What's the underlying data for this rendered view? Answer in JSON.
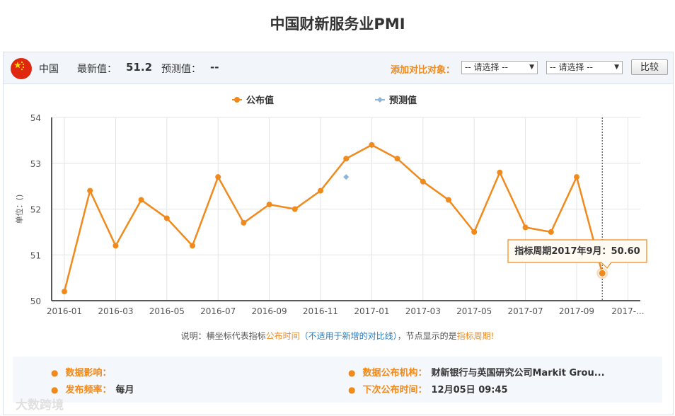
{
  "title": "中国财新服务业PMI",
  "header": {
    "country": "中国",
    "latest_label": "最新值：",
    "latest_value": "51.2",
    "forecast_label": "预测值：",
    "forecast_value": "--",
    "compare_label": "添加对比对象：",
    "select1": "-- 请选择 --",
    "select2": "-- 请选择 --",
    "compare_button": "比较"
  },
  "chart_data": {
    "type": "line",
    "legend": [
      "公布值",
      "预测值"
    ],
    "ylabel": "单位：()",
    "ylim": [
      50,
      54
    ],
    "yticks": [
      50,
      51,
      52,
      53,
      54
    ],
    "x_tick_labels": [
      "2016-01",
      "2016-03",
      "2016-05",
      "2016-07",
      "2016-09",
      "2016-11",
      "2017-01",
      "2017-03",
      "2017-05",
      "2017-07",
      "2017-09",
      "2017-..."
    ],
    "series": [
      {
        "name": "公布值",
        "color": "#f08a1c",
        "x": [
          "2016-01",
          "2016-02",
          "2016-03",
          "2016-04",
          "2016-05",
          "2016-06",
          "2016-07",
          "2016-08",
          "2016-09",
          "2016-10",
          "2016-11",
          "2016-12",
          "2017-01",
          "2017-02",
          "2017-03",
          "2017-04",
          "2017-05",
          "2017-06",
          "2017-07",
          "2017-08",
          "2017-09",
          "2017-10"
        ],
        "values": [
          50.2,
          52.4,
          51.2,
          52.2,
          51.8,
          51.2,
          52.7,
          51.7,
          52.1,
          52.0,
          52.4,
          53.1,
          53.4,
          53.1,
          52.6,
          52.2,
          51.5,
          52.8,
          51.6,
          51.5,
          52.7,
          50.6
        ]
      },
      {
        "name": "预测值",
        "color": "#8fb4da",
        "x": [
          "2016-12"
        ],
        "values": [
          52.7
        ]
      }
    ],
    "tooltip": "指标周期2017年9月：50.60"
  },
  "note": {
    "prefix": "说明：横坐标代表指标",
    "orange1": "公布时间",
    "blue": "（不适用于新增的对比线）",
    "mid": "，节点显示的是",
    "orange2": "指标周期!"
  },
  "info": {
    "impact_label": "数据影响：",
    "impact_value": "",
    "org_label": "数据公布机构：",
    "org_value": "财新银行与英国研究公司Markit Grou...",
    "freq_label": "发布频率：",
    "freq_value": "每月",
    "next_label": "下次公布时间：",
    "next_value": "12月05日 09:45"
  },
  "watermark": "大数跨境"
}
